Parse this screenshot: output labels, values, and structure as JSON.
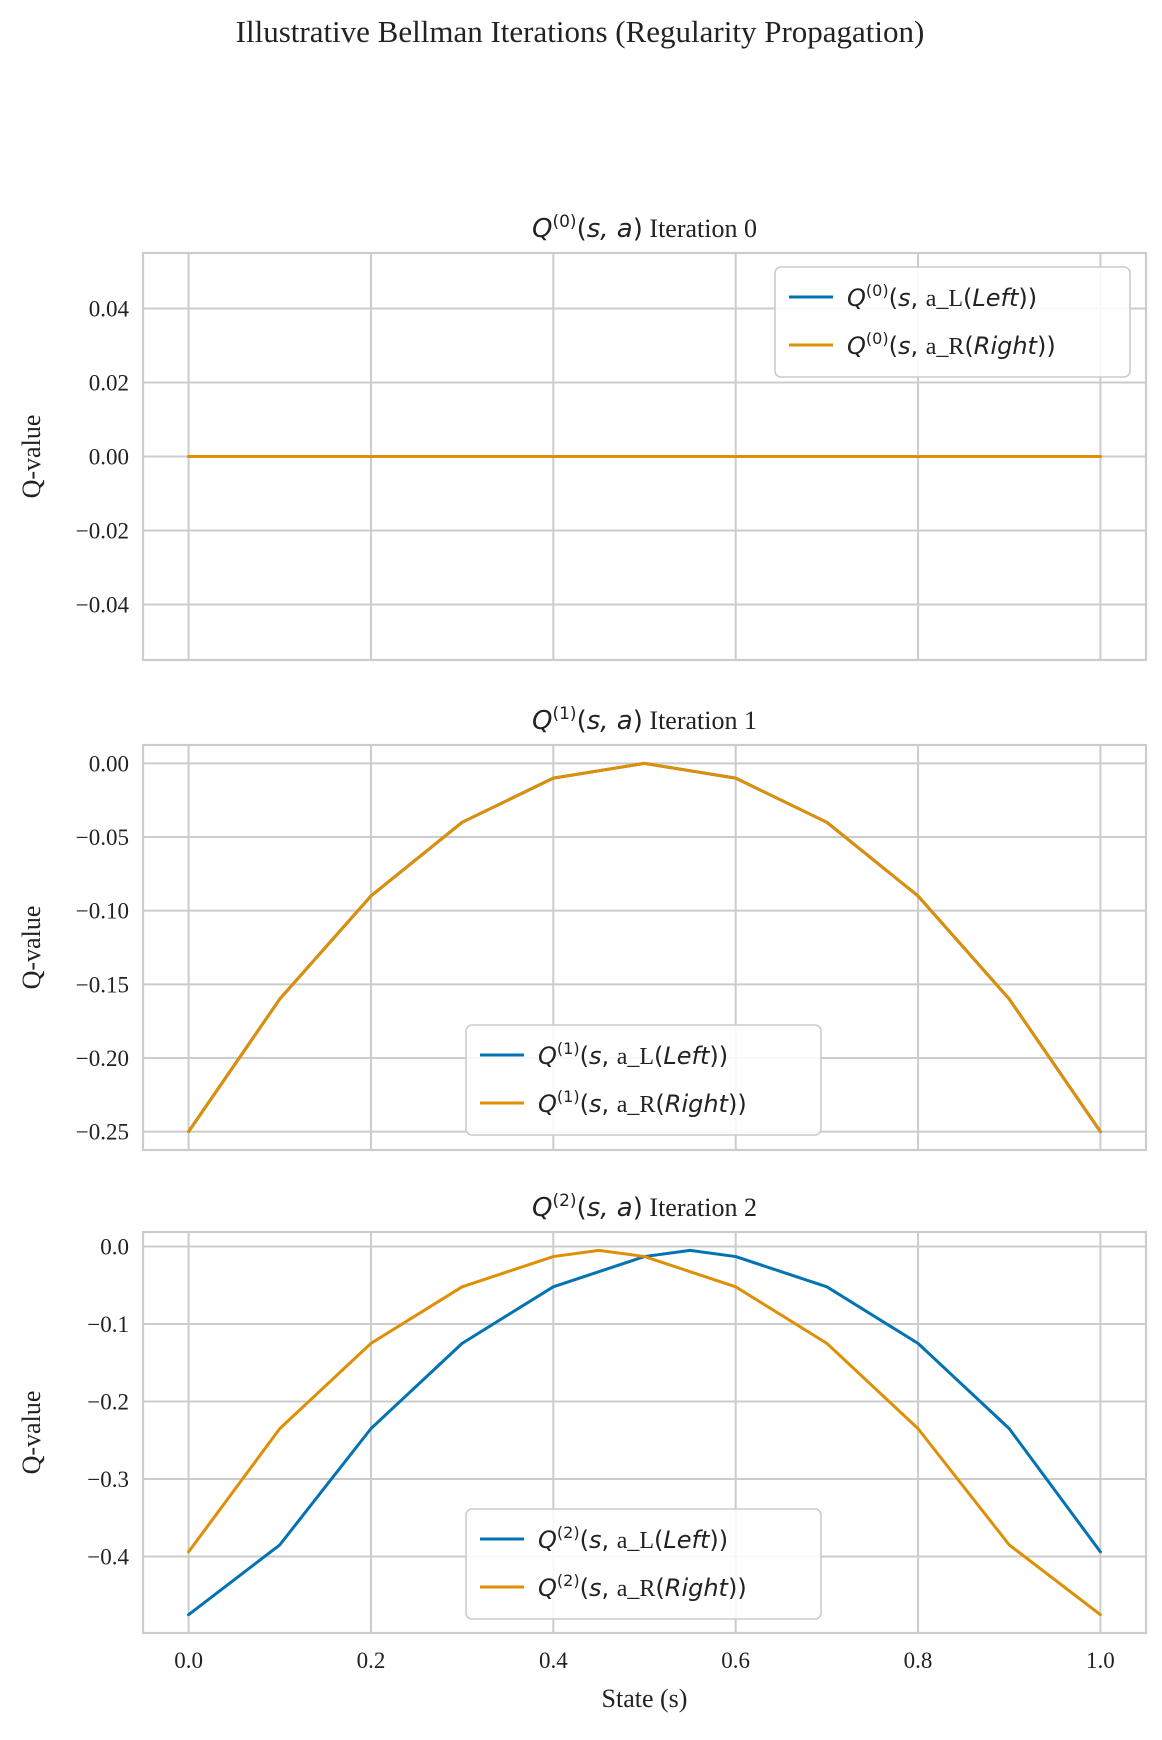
{
  "figure": {
    "title": "Illustrative Bellman Iterations (Regularity Propagation)"
  },
  "chart_data": [
    {
      "type": "line",
      "title_prefix": "Q",
      "title_sup": "(0)",
      "title_args": "(s, a)",
      "title_suffix": " Iteration 0",
      "xlabel": "",
      "ylabel": "Q-value",
      "xlim": [
        -0.05,
        1.05
      ],
      "ylim": [
        -0.055,
        0.055
      ],
      "xticks": [
        0.0,
        0.2,
        0.4,
        0.6,
        0.8,
        1.0
      ],
      "yticks": [
        0.04,
        0.02,
        0.0,
        -0.02,
        -0.04
      ],
      "ytick_labels": [
        "0.04",
        "0.02",
        "0.00",
        "−0.02",
        "−0.04"
      ],
      "show_xtick_labels": false,
      "legend_position": "top-right",
      "x": [
        0.0,
        0.1,
        0.2,
        0.3,
        0.4,
        0.5,
        0.6,
        0.7,
        0.8,
        0.9,
        1.0
      ],
      "series": [
        {
          "name": "a_L(Left)",
          "label_sup": "(0)",
          "label_action": "a_L",
          "label_dir": "Left",
          "color": "#0173b2",
          "values": [
            0,
            0,
            0,
            0,
            0,
            0,
            0,
            0,
            0,
            0,
            0
          ]
        },
        {
          "name": "a_R(Right)",
          "label_sup": "(0)",
          "label_action": "a_R",
          "label_dir": "Right",
          "color": "#de8f05",
          "values": [
            0,
            0,
            0,
            0,
            0,
            0,
            0,
            0,
            0,
            0,
            0
          ]
        }
      ]
    },
    {
      "type": "line",
      "title_prefix": "Q",
      "title_sup": "(1)",
      "title_args": "(s, a)",
      "title_suffix": " Iteration 1",
      "xlabel": "",
      "ylabel": "Q-value",
      "xlim": [
        -0.05,
        1.05
      ],
      "ylim": [
        -0.2625,
        0.0125
      ],
      "xticks": [
        0.0,
        0.2,
        0.4,
        0.6,
        0.8,
        1.0
      ],
      "yticks": [
        0.0,
        -0.05,
        -0.1,
        -0.15,
        -0.2,
        -0.25
      ],
      "ytick_labels": [
        "0.00",
        "−0.05",
        "−0.10",
        "−0.15",
        "−0.20",
        "−0.25"
      ],
      "show_xtick_labels": false,
      "legend_position": "lower-center",
      "x": [
        0.0,
        0.1,
        0.2,
        0.3,
        0.4,
        0.5,
        0.6,
        0.7,
        0.8,
        0.9,
        1.0
      ],
      "series": [
        {
          "name": "a_L(Left)",
          "label_sup": "(1)",
          "label_action": "a_L",
          "label_dir": "Left",
          "color": "#0173b2",
          "values": [
            -0.25,
            -0.16,
            -0.09,
            -0.04,
            -0.01,
            0.0,
            -0.01,
            -0.04,
            -0.09,
            -0.16,
            -0.25
          ]
        },
        {
          "name": "a_R(Right)",
          "label_sup": "(1)",
          "label_action": "a_R",
          "label_dir": "Right",
          "color": "#de8f05",
          "values": [
            -0.25,
            -0.16,
            -0.09,
            -0.04,
            -0.01,
            0.0,
            -0.01,
            -0.04,
            -0.09,
            -0.16,
            -0.25
          ]
        }
      ]
    },
    {
      "type": "line",
      "title_prefix": "Q",
      "title_sup": "(2)",
      "title_args": "(s, a)",
      "title_suffix": " Iteration 2",
      "xlabel": "State (s)",
      "ylabel": "Q-value",
      "xlim": [
        -0.05,
        1.05
      ],
      "ylim": [
        -0.4987,
        0.0187
      ],
      "xticks": [
        0.0,
        0.2,
        0.4,
        0.6,
        0.8,
        1.0
      ],
      "xtick_labels": [
        "0.0",
        "0.2",
        "0.4",
        "0.6",
        "0.8",
        "1.0"
      ],
      "yticks": [
        0.0,
        -0.1,
        -0.2,
        -0.3,
        -0.4
      ],
      "ytick_labels": [
        "0.0",
        "−0.1",
        "−0.2",
        "−0.3",
        "−0.4"
      ],
      "show_xtick_labels": true,
      "legend_position": "lower-center",
      "x": [
        0.0,
        0.1,
        0.2,
        0.3,
        0.4,
        0.5,
        0.55,
        0.6,
        0.7,
        0.8,
        0.9,
        1.0
      ],
      "series": [
        {
          "name": "a_L(Left)",
          "label_sup": "(2)",
          "label_action": "a_L",
          "label_dir": "Left",
          "color": "#0173b2",
          "values": [
            -0.475,
            -0.385,
            -0.235,
            -0.125,
            -0.052,
            -0.013,
            -0.005,
            -0.013,
            -0.052,
            -0.125,
            -0.235,
            -0.394
          ]
        },
        {
          "name": "a_R(Right)",
          "label_sup": "(2)",
          "label_action": "a_R",
          "label_dir": "Right",
          "color": "#de8f05",
          "x": [
            0.0,
            0.1,
            0.2,
            0.3,
            0.4,
            0.45,
            0.5,
            0.6,
            0.7,
            0.8,
            0.9,
            1.0
          ],
          "values": [
            -0.394,
            -0.235,
            -0.125,
            -0.052,
            -0.013,
            -0.005,
            -0.013,
            -0.052,
            -0.125,
            -0.235,
            -0.385,
            -0.475
          ]
        }
      ]
    }
  ]
}
